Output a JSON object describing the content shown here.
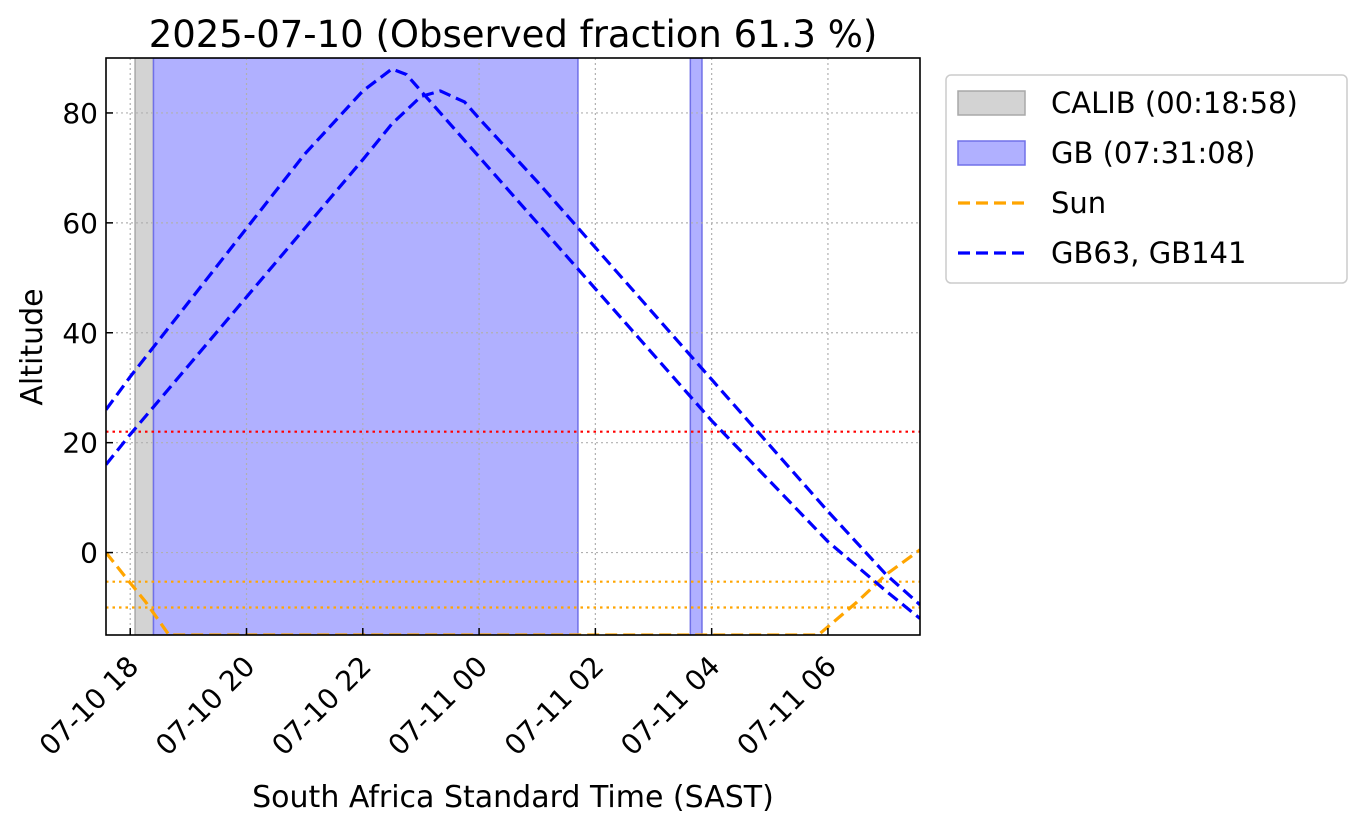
{
  "chart_data": {
    "type": "line",
    "title": "2025-07-10 (Observed fraction 61.3 %)",
    "xlabel": "South Africa Standard Time (SAST)",
    "ylabel": "Altitude",
    "x_unit": "datetime (SAST)",
    "xlim": [
      "2025-07-10 17:35",
      "2025-07-11 07:35"
    ],
    "ylim": [
      -15,
      90
    ],
    "x_ticks": [
      "2025-07-10 18:00",
      "2025-07-10 20:00",
      "2025-07-10 22:00",
      "2025-07-11 00:00",
      "2025-07-11 02:00",
      "2025-07-11 04:00",
      "2025-07-11 06:00"
    ],
    "x_tick_labels": [
      "07-10 18",
      "07-10 20",
      "07-10 22",
      "07-11 00",
      "07-11 02",
      "07-11 04",
      "07-11 06"
    ],
    "y_ticks": [
      0,
      20,
      40,
      60,
      80
    ],
    "y_tick_labels": [
      "0",
      "20",
      "40",
      "60",
      "80"
    ],
    "grid": true,
    "legend_position": "outside-right-top",
    "spans": [
      {
        "label": "CALIB (00:18:58)",
        "start": "2025-07-10 18:05",
        "end": "2025-07-10 18:24",
        "color": "#d3d3d3"
      },
      {
        "label": "GB (07:31:08)",
        "start": "2025-07-10 18:24",
        "end": "2025-07-11 01:42",
        "color": "#b0b0ff"
      },
      {
        "label": "",
        "start": "2025-07-11 03:38",
        "end": "2025-07-11 03:50",
        "color": "#b0b0ff"
      }
    ],
    "hlines": [
      {
        "y": 22,
        "color": "#ff0000",
        "style": "dotted"
      },
      {
        "y": -5.3,
        "color": "#ffa500",
        "style": "dotted"
      },
      {
        "y": -10,
        "color": "#ffa500",
        "style": "dotted"
      }
    ],
    "series": [
      {
        "name": "Sun",
        "color": "#ffa500",
        "style": "dashed",
        "x": [
          "2025-07-10 17:35",
          "2025-07-10 17:53",
          "2025-07-10 18:16",
          "2025-07-10 18:40",
          "2025-07-11 05:50",
          "2025-07-11 06:30",
          "2025-07-11 07:00",
          "2025-07-11 07:35"
        ],
        "y": [
          0,
          -4,
          -9,
          -15,
          -15,
          -9,
          -4,
          0.5
        ]
      },
      {
        "name": "GB63",
        "color": "#0000ff",
        "style": "dashed",
        "x": [
          "2025-07-10 17:35",
          "2025-07-10 18:00",
          "2025-07-10 19:00",
          "2025-07-10 20:00",
          "2025-07-10 21:00",
          "2025-07-10 22:00",
          "2025-07-10 22:30",
          "2025-07-10 22:45",
          "2025-07-10 23:00",
          "2025-07-10 23:30",
          "2025-07-11 00:00",
          "2025-07-11 01:00",
          "2025-07-11 02:00",
          "2025-07-11 03:00",
          "2025-07-11 04:00",
          "2025-07-11 05:00",
          "2025-07-11 06:00",
          "2025-07-11 07:00",
          "2025-07-11 07:35"
        ],
        "y": [
          26,
          32,
          45.5,
          59,
          72.5,
          84,
          88,
          87,
          84,
          78,
          72,
          60,
          48,
          36,
          24,
          13,
          2,
          -7,
          -12
        ]
      },
      {
        "name": "GB141",
        "color": "#0000ff",
        "style": "dashed",
        "x": [
          "2025-07-10 17:35",
          "2025-07-10 18:00",
          "2025-07-10 19:00",
          "2025-07-10 20:00",
          "2025-07-10 21:00",
          "2025-07-10 22:00",
          "2025-07-10 22:30",
          "2025-07-10 23:00",
          "2025-07-10 23:20",
          "2025-07-10 23:45",
          "2025-07-11 00:00",
          "2025-07-11 01:00",
          "2025-07-11 02:00",
          "2025-07-11 03:00",
          "2025-07-11 04:00",
          "2025-07-11 05:00",
          "2025-07-11 06:00",
          "2025-07-11 07:00",
          "2025-07-11 07:35"
        ],
        "y": [
          16,
          21.5,
          34,
          46.5,
          59,
          71.5,
          78,
          83,
          84,
          82,
          79,
          67.5,
          55.5,
          43.5,
          31.5,
          19.5,
          7.5,
          -4,
          -9.5
        ]
      }
    ],
    "legend": [
      {
        "label": "CALIB (00:18:58)",
        "kind": "patch",
        "color": "#d3d3d3"
      },
      {
        "label": "GB (07:31:08)",
        "kind": "patch",
        "color": "#b0b0ff"
      },
      {
        "label": "Sun",
        "kind": "line",
        "color": "#ffa500"
      },
      {
        "label": "GB63, GB141",
        "kind": "line",
        "color": "#0000ff"
      }
    ]
  }
}
